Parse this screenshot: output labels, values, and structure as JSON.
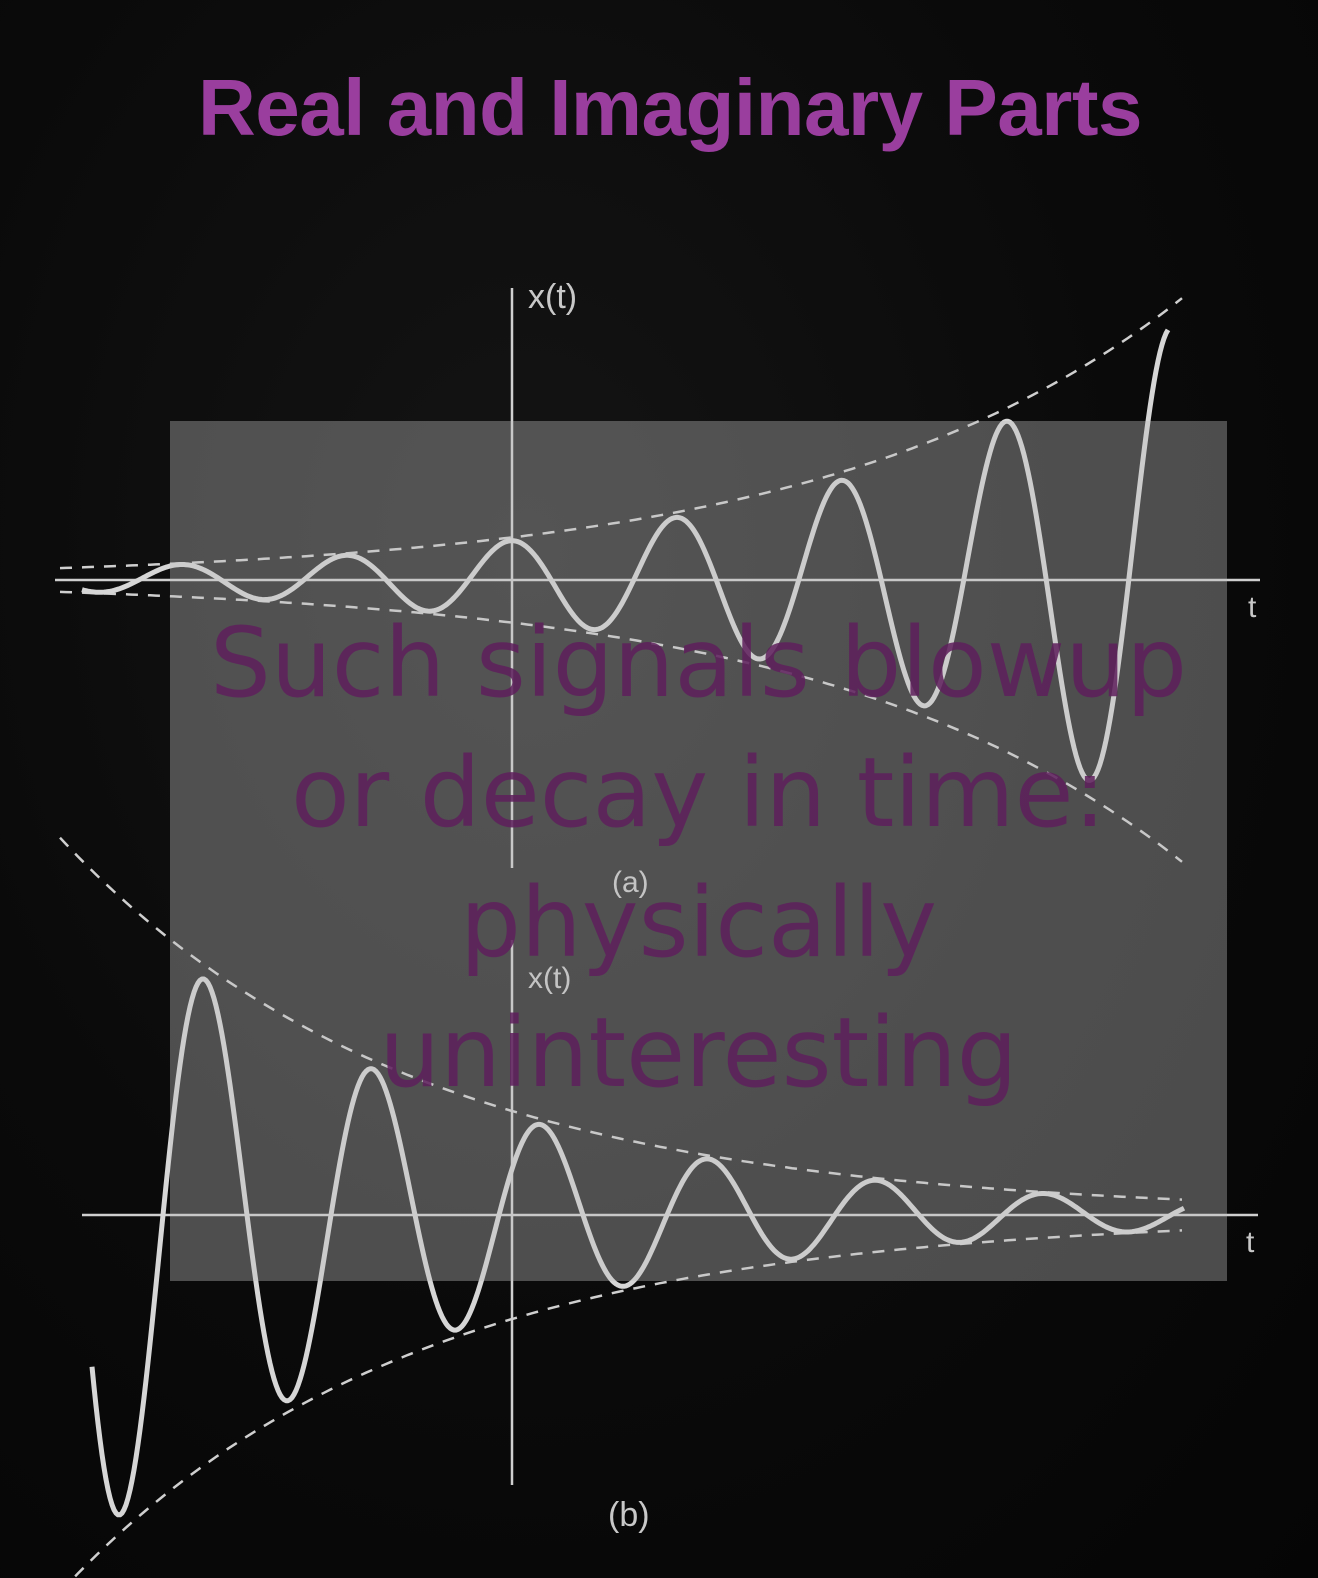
{
  "slide": {
    "title": "Real and Imaginary Parts",
    "title_color": "#9a3e9e",
    "background_color": "#070707"
  },
  "figure_a": {
    "y_axis_label": "x(t)",
    "x_axis_label": "t",
    "caption": "(a)",
    "behavior": "growing oscillation"
  },
  "figure_b": {
    "y_axis_label": "x(t)",
    "x_axis_label": "t",
    "caption": "(b)",
    "behavior": "decaying oscillation"
  },
  "overlay": {
    "lines": [
      "Such signals blowup",
      "or decay in time:",
      "physically",
      "uninteresting"
    ],
    "text_color": "#5e1f5c",
    "box_color": "#bebebe"
  }
}
